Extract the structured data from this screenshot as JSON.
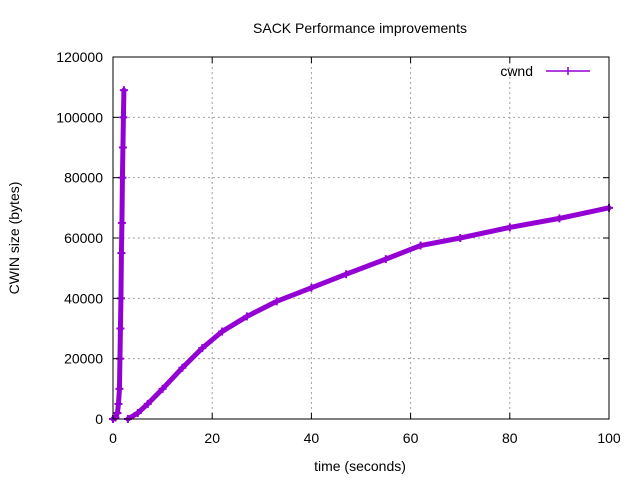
{
  "chart_data": {
    "type": "line",
    "title": "SACK Performance improvements",
    "xlabel": "time (seconds)",
    "ylabel": "CWIN size (bytes)",
    "xlim": [
      0,
      100
    ],
    "ylim": [
      0,
      120000
    ],
    "x_ticks": [
      0,
      20,
      40,
      60,
      80,
      100
    ],
    "y_ticks": [
      0,
      20000,
      40000,
      60000,
      80000,
      100000,
      120000
    ],
    "grid": true,
    "legend_position": "top-right",
    "series": [
      {
        "name": "cwnd",
        "color": "#9400d3",
        "segments": [
          {
            "x": [
              0.0,
              0.5,
              0.9,
              1.1,
              1.3,
              1.4,
              1.5,
              1.6,
              1.7,
              1.8,
              1.9,
              2.0,
              2.1,
              2.2
            ],
            "y": [
              0,
              500,
              2000,
              5000,
              10000,
              20000,
              30000,
              40000,
              55000,
              65000,
              80000,
              90000,
              100000,
              109000
            ]
          },
          {
            "x": [
              3.0,
              5.0,
              7.0,
              10.0,
              14.0,
              18.0,
              22.0,
              27.0,
              33.0,
              40.0,
              47.0,
              55.0,
              62.0,
              70.0,
              80.0,
              90.0,
              100.0
            ],
            "y": [
              0,
              2000,
              5000,
              10000,
              17000,
              23500,
              29000,
              34000,
              39000,
              43500,
              48000,
              53000,
              57500,
              60000,
              63500,
              66500,
              70000
            ]
          }
        ]
      }
    ]
  }
}
